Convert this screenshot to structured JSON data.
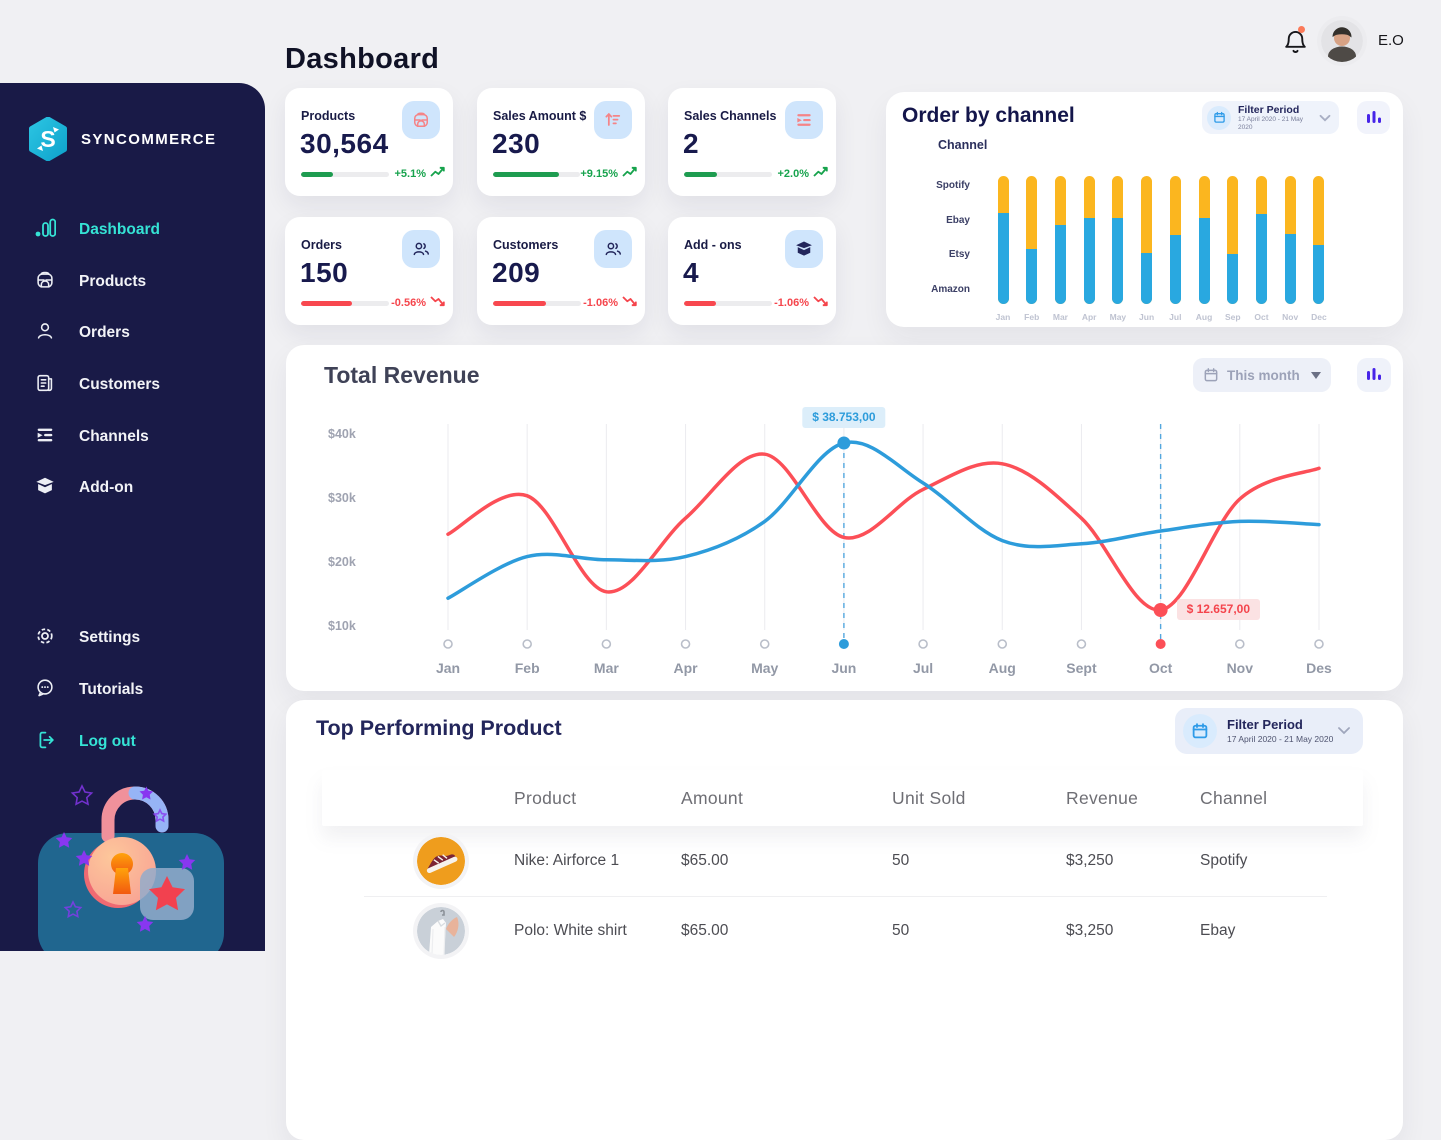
{
  "header": {
    "title": "Dashboard",
    "user_name": "E.O",
    "notifications_unread": true
  },
  "sidebar": {
    "brand": "SYNCOMMERCE",
    "nav": [
      {
        "label": "Dashboard",
        "icon": "bar-chart-icon",
        "active": true
      },
      {
        "label": "Products",
        "icon": "backpack-icon"
      },
      {
        "label": "Orders",
        "icon": "person-icon"
      },
      {
        "label": "Customers",
        "icon": "document-icon"
      },
      {
        "label": "Channels",
        "icon": "channels-icon"
      },
      {
        "label": "Add-on",
        "icon": "box-icon"
      }
    ],
    "secondary": [
      {
        "label": "Settings",
        "icon": "gear-icon"
      },
      {
        "label": "Tutorials",
        "icon": "chat-bubble-icon"
      },
      {
        "label": "Log out",
        "icon": "logout-icon"
      }
    ]
  },
  "stats": {
    "cards": [
      {
        "label": "Products",
        "value": "30,564",
        "change": "+5.1%",
        "trend": "up",
        "progress": 36,
        "icon": "backpack-icon"
      },
      {
        "label": "Sales Amount $",
        "value": "230",
        "change": "+9.15%",
        "trend": "up",
        "progress": 75,
        "icon": "trending-bars-icon"
      },
      {
        "label": "Sales Channels",
        "value": "2",
        "change": "+2.0%",
        "trend": "up",
        "progress": 38,
        "icon": "channels-icon"
      },
      {
        "label": "Orders",
        "value": "150",
        "change": "-0.56%",
        "trend": "down",
        "progress": 58,
        "icon": "users-icon"
      },
      {
        "label": "Customers",
        "value": "209",
        "change": "-1.06%",
        "trend": "down",
        "progress": 60,
        "icon": "users-icon"
      },
      {
        "label": "Add - ons",
        "value": "4",
        "change": "-1.06%",
        "trend": "down",
        "progress": 36,
        "icon": "box-icon"
      }
    ]
  },
  "order_by_channel": {
    "title": "Order by channel",
    "filter": {
      "label": "Filter Period",
      "range": "17 April 2020 - 21 May 2020",
      "icon": "calendar-icon"
    },
    "axis_label": "Channel"
  },
  "total_revenue": {
    "title": "Total Revenue",
    "filter": {
      "label": "This month",
      "icon": "calendar-icon"
    }
  },
  "top_products": {
    "title": "Top Performing Product",
    "filter": {
      "label": "Filter Period",
      "range": "17 April 2020 - 21 May 2020",
      "icon": "calendar-icon"
    },
    "columns": [
      "Product",
      "Amount",
      "Unit Sold",
      "Revenue",
      "Channel"
    ],
    "rows": [
      {
        "product": "Nike: Airforce 1",
        "amount": "$65.00",
        "unit_sold": "50",
        "revenue": "$3,250",
        "channel": "Spotify",
        "thumb": "sneaker-photo"
      },
      {
        "product": "Polo: White shirt",
        "amount": "$65.00",
        "unit_sold": "50",
        "revenue": "$3,250",
        "channel": "Ebay",
        "thumb": "shirt-photo"
      }
    ]
  },
  "colors": {
    "sidebar_bg": "#191A47",
    "accent_teal": "#35E3D5",
    "bar_blue": "#29A8E0",
    "bar_yellow": "#FBB61F",
    "line_blue": "#2D9CDB",
    "line_red": "#FC4F57",
    "green": "#1E9C50",
    "red": "#F8484F",
    "purple": "#4724E8",
    "tile_blue": "#CFE5FC",
    "icon_pink": "#F58487",
    "icon_navy": "#23265B"
  },
  "chart_data": [
    {
      "type": "bar",
      "title": "Order by channel",
      "stacked": true,
      "ylabel": "Channel",
      "ylabels": [
        "Spotify",
        "Ebay",
        "Etsy",
        "Amazon"
      ],
      "categories": [
        "Jan",
        "Feb",
        "Mar",
        "Apr",
        "May",
        "Jun",
        "Jul",
        "Aug",
        "Sep",
        "Oct",
        "Nov",
        "Dec"
      ],
      "series": [
        {
          "name": "blue-segment",
          "color": "#29A8E0",
          "values": [
            71,
            43,
            62,
            67,
            67,
            40,
            54,
            67,
            39,
            70,
            55,
            46
          ]
        },
        {
          "name": "yellow-segment",
          "color": "#FBB61F",
          "values": [
            29,
            57,
            38,
            33,
            33,
            60,
            46,
            33,
            61,
            30,
            45,
            54
          ]
        }
      ],
      "unit": "percent-of-bar-height",
      "legend": "none"
    },
    {
      "type": "line",
      "title": "Total Revenue",
      "x": [
        "Jan",
        "Feb",
        "Mar",
        "Apr",
        "May",
        "Jun",
        "Jul",
        "Aug",
        "Sept",
        "Oct",
        "Nov",
        "Des"
      ],
      "yticks": [
        "$40k",
        "$30k",
        "$20k",
        "$10k"
      ],
      "ylim_k": [
        10,
        42
      ],
      "grid": "vertical",
      "series": [
        {
          "name": "blue",
          "color": "#2D9CDB",
          "values_k": [
            14.5,
            21,
            20.5,
            21,
            26.5,
            38.753,
            32.5,
            23.5,
            23,
            25,
            26.5,
            26
          ]
        },
        {
          "name": "red",
          "color": "#FC4F57",
          "values_k": [
            24.5,
            30.5,
            15.5,
            27,
            37,
            24,
            31.5,
            35.5,
            27,
            12.657,
            30,
            34.8
          ]
        }
      ],
      "annotations": [
        {
          "series": "blue",
          "x": "Jun",
          "x_index": 5,
          "label": "$ 38.753,00"
        },
        {
          "series": "red",
          "x": "Oct",
          "x_index": 9,
          "label": "$ 12.657,00"
        }
      ]
    }
  ]
}
